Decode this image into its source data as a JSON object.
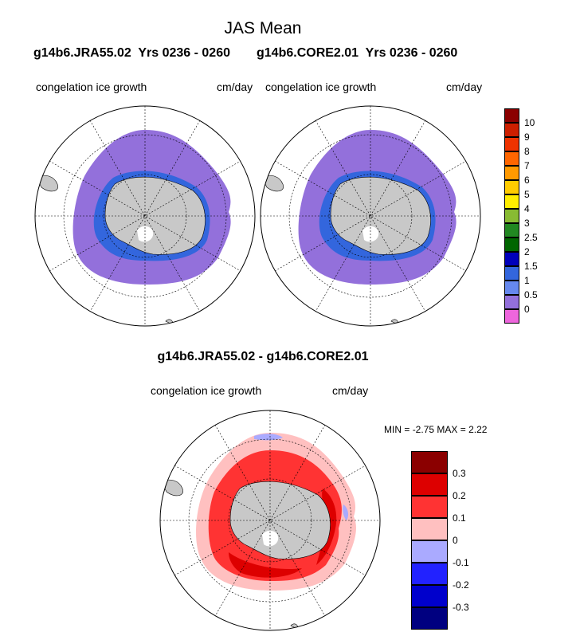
{
  "figure": {
    "title": "JAS Mean",
    "panels": [
      {
        "case": "g14b6.JRA55.02",
        "years": "Yrs 0236 - 0260",
        "variable": "congelation ice growth",
        "units": "cm/day"
      },
      {
        "case": "g14b6.CORE2.01",
        "years": "Yrs 0236 - 0260",
        "variable": "congelation ice growth",
        "units": "cm/day"
      }
    ],
    "diff": {
      "title": "g14b6.JRA55.02 - g14b6.CORE2.01",
      "variable": "congelation ice growth",
      "units": "cm/day",
      "min_label": "MIN =",
      "min_value": "-2.75",
      "max_label": "MAX =",
      "max_value": "2.22"
    }
  },
  "colorbar_top": {
    "labels": [
      "10",
      "9",
      "8",
      "7",
      "6",
      "5",
      "4",
      "3",
      "2.5",
      "2",
      "1.5",
      "1",
      "0.5",
      "0"
    ],
    "colors": [
      "#8b0000",
      "#cc1f00",
      "#ee3300",
      "#ff6600",
      "#ff9900",
      "#ffcc00",
      "#ffee00",
      "#88bb33",
      "#228822",
      "#006600",
      "#0000bb",
      "#3366dd",
      "#6688ee",
      "#9370db",
      "#ee66dd"
    ]
  },
  "colorbar_bottom": {
    "labels": [
      "0.3",
      "0.2",
      "0.1",
      "0",
      "-0.1",
      "-0.2",
      "-0.3"
    ],
    "colors": [
      "#8b0000",
      "#dd0000",
      "#ff3333",
      "#ffc0c0",
      "#aaaaff",
      "#2222ff",
      "#0000cc",
      "#000080"
    ]
  },
  "map_colors": {
    "land": "#c8c8c8",
    "ice_base_top": "#9370db",
    "diff_base": "#ffc0c0",
    "diff_pos": "#ff3333",
    "diff_high": "#dd0000",
    "diff_neg": "#aaaaff"
  }
}
